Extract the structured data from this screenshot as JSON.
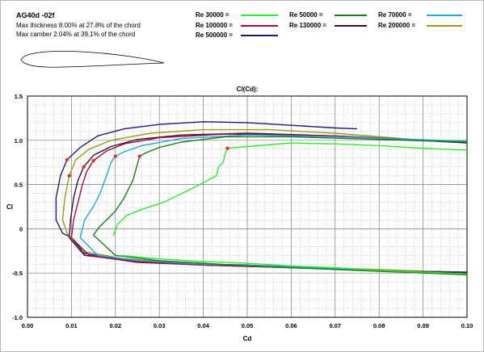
{
  "header": {
    "airfoil_name": "AG40d -02f",
    "thickness_text": "Max thickness 8.00% at 27.8% of the chord",
    "camber_text": "Max camber 2.04% at 39.1% of the chord"
  },
  "legend": {
    "entries": [
      {
        "label": "Re 30000 =",
        "color": "#33e633"
      },
      {
        "label": "Re 50000 =",
        "color": "#1a7a1a"
      },
      {
        "label": "Re 70000 =",
        "color": "#22a6e0"
      },
      {
        "label": "Re 100000 =",
        "color": "#a01040"
      },
      {
        "label": "Re 130000 =",
        "color": "#3a1030"
      },
      {
        "label": "Re 200000 =",
        "color": "#9a9a20"
      },
      {
        "label": "Re 500000 =",
        "color": "#1a1a7a"
      }
    ]
  },
  "chart_data": {
    "type": "line",
    "title": "Cl(Cd):",
    "xlabel": "Cd",
    "ylabel": "Cl",
    "xlim": [
      0.0,
      0.1
    ],
    "ylim": [
      -1.0,
      1.5
    ],
    "x_ticks": [
      "0.00",
      "0.01",
      "0.02",
      "0.03",
      "0.04",
      "0.05",
      "0.06",
      "0.07",
      "0.08",
      "0.09",
      "0.10"
    ],
    "y_ticks": [
      "1.5",
      "1.0",
      "0.5",
      "0",
      "-0.5",
      "-1.0"
    ],
    "grid": true,
    "series": [
      {
        "name": "Re 30000 =",
        "color": "#33e633",
        "points": [
          [
            0.0195,
            -0.08
          ],
          [
            0.0205,
            0.05
          ],
          [
            0.0225,
            0.15
          ],
          [
            0.026,
            0.22
          ],
          [
            0.031,
            0.3
          ],
          [
            0.036,
            0.42
          ],
          [
            0.04,
            0.52
          ],
          [
            0.043,
            0.6
          ],
          [
            0.0435,
            0.7
          ],
          [
            0.0445,
            0.75
          ],
          [
            0.045,
            0.85
          ],
          [
            0.0455,
            0.91
          ],
          [
            0.05,
            0.93
          ],
          [
            0.06,
            0.97
          ],
          [
            0.07,
            0.96
          ],
          [
            0.08,
            0.94
          ],
          [
            0.09,
            0.91
          ],
          [
            0.1,
            0.89
          ]
        ],
        "lower_points": [
          [
            0.021,
            -0.3
          ],
          [
            0.03,
            -0.34
          ],
          [
            0.04,
            -0.37
          ],
          [
            0.05,
            -0.39
          ],
          [
            0.06,
            -0.42
          ],
          [
            0.07,
            -0.44
          ],
          [
            0.08,
            -0.47
          ],
          [
            0.09,
            -0.49
          ],
          [
            0.1,
            -0.51
          ]
        ],
        "marker": [
          0.0455,
          0.91
        ]
      },
      {
        "name": "Re 50000 =",
        "color": "#1a7a1a",
        "points": [
          [
            0.015,
            -0.07
          ],
          [
            0.0165,
            0.03
          ],
          [
            0.018,
            0.1
          ],
          [
            0.02,
            0.2
          ],
          [
            0.022,
            0.35
          ],
          [
            0.024,
            0.55
          ],
          [
            0.025,
            0.73
          ],
          [
            0.0255,
            0.82
          ],
          [
            0.027,
            0.86
          ],
          [
            0.03,
            0.92
          ],
          [
            0.035,
            0.98
          ],
          [
            0.045,
            1.04
          ],
          [
            0.06,
            1.04
          ],
          [
            0.08,
            1.01
          ],
          [
            0.1,
            0.98
          ]
        ],
        "lower_points": [
          [
            0.015,
            -0.07
          ],
          [
            0.02,
            -0.3
          ],
          [
            0.03,
            -0.36
          ],
          [
            0.04,
            -0.39
          ],
          [
            0.05,
            -0.42
          ],
          [
            0.06,
            -0.44
          ],
          [
            0.07,
            -0.46
          ],
          [
            0.08,
            -0.48
          ],
          [
            0.09,
            -0.5
          ],
          [
            0.1,
            -0.52
          ]
        ],
        "marker": [
          0.0255,
          0.82
        ]
      },
      {
        "name": "Re 70000 =",
        "color": "#22a6e0",
        "points": [
          [
            0.012,
            -0.1
          ],
          [
            0.013,
            0.1
          ],
          [
            0.015,
            0.25
          ],
          [
            0.0165,
            0.4
          ],
          [
            0.018,
            0.6
          ],
          [
            0.019,
            0.75
          ],
          [
            0.02,
            0.82
          ],
          [
            0.022,
            0.87
          ],
          [
            0.026,
            0.94
          ],
          [
            0.035,
            1.02
          ],
          [
            0.05,
            1.06
          ],
          [
            0.07,
            1.04
          ],
          [
            0.1,
            0.99
          ]
        ],
        "lower_points": [
          [
            0.012,
            -0.1
          ],
          [
            0.016,
            -0.3
          ],
          [
            0.025,
            -0.36
          ],
          [
            0.04,
            -0.4
          ],
          [
            0.06,
            -0.43
          ],
          [
            0.08,
            -0.47
          ],
          [
            0.1,
            -0.51
          ]
        ],
        "marker": [
          0.02,
          0.82
        ]
      },
      {
        "name": "Re 100000 =",
        "color": "#a01040",
        "points": [
          [
            0.01,
            -0.1
          ],
          [
            0.0105,
            0.1
          ],
          [
            0.0115,
            0.3
          ],
          [
            0.0125,
            0.5
          ],
          [
            0.0135,
            0.65
          ],
          [
            0.015,
            0.77
          ],
          [
            0.018,
            0.88
          ],
          [
            0.022,
            0.96
          ],
          [
            0.03,
            1.03
          ],
          [
            0.045,
            1.07
          ],
          [
            0.07,
            1.05
          ],
          [
            0.1,
            0.98
          ]
        ],
        "lower_points": [
          [
            0.01,
            -0.1
          ],
          [
            0.014,
            -0.3
          ],
          [
            0.025,
            -0.38
          ],
          [
            0.04,
            -0.41
          ],
          [
            0.06,
            -0.44
          ],
          [
            0.08,
            -0.47
          ],
          [
            0.1,
            -0.51
          ]
        ],
        "marker": [
          0.015,
          0.77
        ]
      },
      {
        "name": "Re 130000 =",
        "color": "#3a1030",
        "points": [
          [
            0.0095,
            -0.1
          ],
          [
            0.0098,
            0.1
          ],
          [
            0.0105,
            0.35
          ],
          [
            0.0115,
            0.55
          ],
          [
            0.0128,
            0.7
          ],
          [
            0.015,
            0.83
          ],
          [
            0.019,
            0.93
          ],
          [
            0.025,
            1.01
          ],
          [
            0.035,
            1.06
          ],
          [
            0.05,
            1.08
          ],
          [
            0.07,
            1.05
          ],
          [
            0.1,
            0.97
          ]
        ],
        "lower_points": [
          [
            0.0095,
            -0.1
          ],
          [
            0.013,
            -0.3
          ],
          [
            0.025,
            -0.37
          ],
          [
            0.04,
            -0.41
          ],
          [
            0.06,
            -0.44
          ],
          [
            0.08,
            -0.47
          ],
          [
            0.1,
            -0.5
          ]
        ],
        "marker": [
          0.0128,
          0.7
        ]
      },
      {
        "name": "Re 200000 =",
        "color": "#9a9a20",
        "points": [
          [
            0.009,
            -0.05
          ],
          [
            0.008,
            0.1
          ],
          [
            0.0085,
            0.35
          ],
          [
            0.0095,
            0.6
          ],
          [
            0.011,
            0.78
          ],
          [
            0.014,
            0.9
          ],
          [
            0.019,
            1.0
          ],
          [
            0.028,
            1.08
          ],
          [
            0.04,
            1.12
          ],
          [
            0.055,
            1.12
          ],
          [
            0.07,
            1.08
          ],
          [
            0.09,
            1.0
          ],
          [
            0.1,
            0.97
          ]
        ],
        "lower_points": [
          [
            0.009,
            -0.05
          ],
          [
            0.012,
            -0.25
          ],
          [
            0.022,
            -0.34
          ],
          [
            0.03,
            -0.37
          ],
          [
            0.04,
            -0.4
          ],
          [
            0.06,
            -0.43
          ],
          [
            0.08,
            -0.46
          ],
          [
            0.1,
            -0.5
          ]
        ],
        "marker": [
          0.0095,
          0.6
        ]
      },
      {
        "name": "Re 500000 =",
        "color": "#1a1a7a",
        "points": [
          [
            0.01,
            -0.1
          ],
          [
            0.008,
            -0.05
          ],
          [
            0.0065,
            0.1
          ],
          [
            0.0065,
            0.35
          ],
          [
            0.0075,
            0.6
          ],
          [
            0.009,
            0.78
          ],
          [
            0.012,
            0.92
          ],
          [
            0.016,
            1.05
          ],
          [
            0.022,
            1.13
          ],
          [
            0.03,
            1.18
          ],
          [
            0.04,
            1.21
          ],
          [
            0.05,
            1.2
          ],
          [
            0.06,
            1.17
          ],
          [
            0.07,
            1.14
          ],
          [
            0.075,
            1.13
          ]
        ],
        "lower_points": [
          [
            0.01,
            -0.1
          ],
          [
            0.013,
            -0.28
          ],
          [
            0.02,
            -0.33
          ],
          [
            0.03,
            -0.37
          ],
          [
            0.04,
            -0.4
          ],
          [
            0.05,
            -0.41
          ],
          [
            0.06,
            -0.43
          ],
          [
            0.07,
            -0.45
          ],
          [
            0.08,
            -0.47
          ],
          [
            0.09,
            -0.48
          ],
          [
            0.1,
            -0.49
          ]
        ],
        "marker": [
          0.009,
          0.78
        ]
      }
    ]
  }
}
